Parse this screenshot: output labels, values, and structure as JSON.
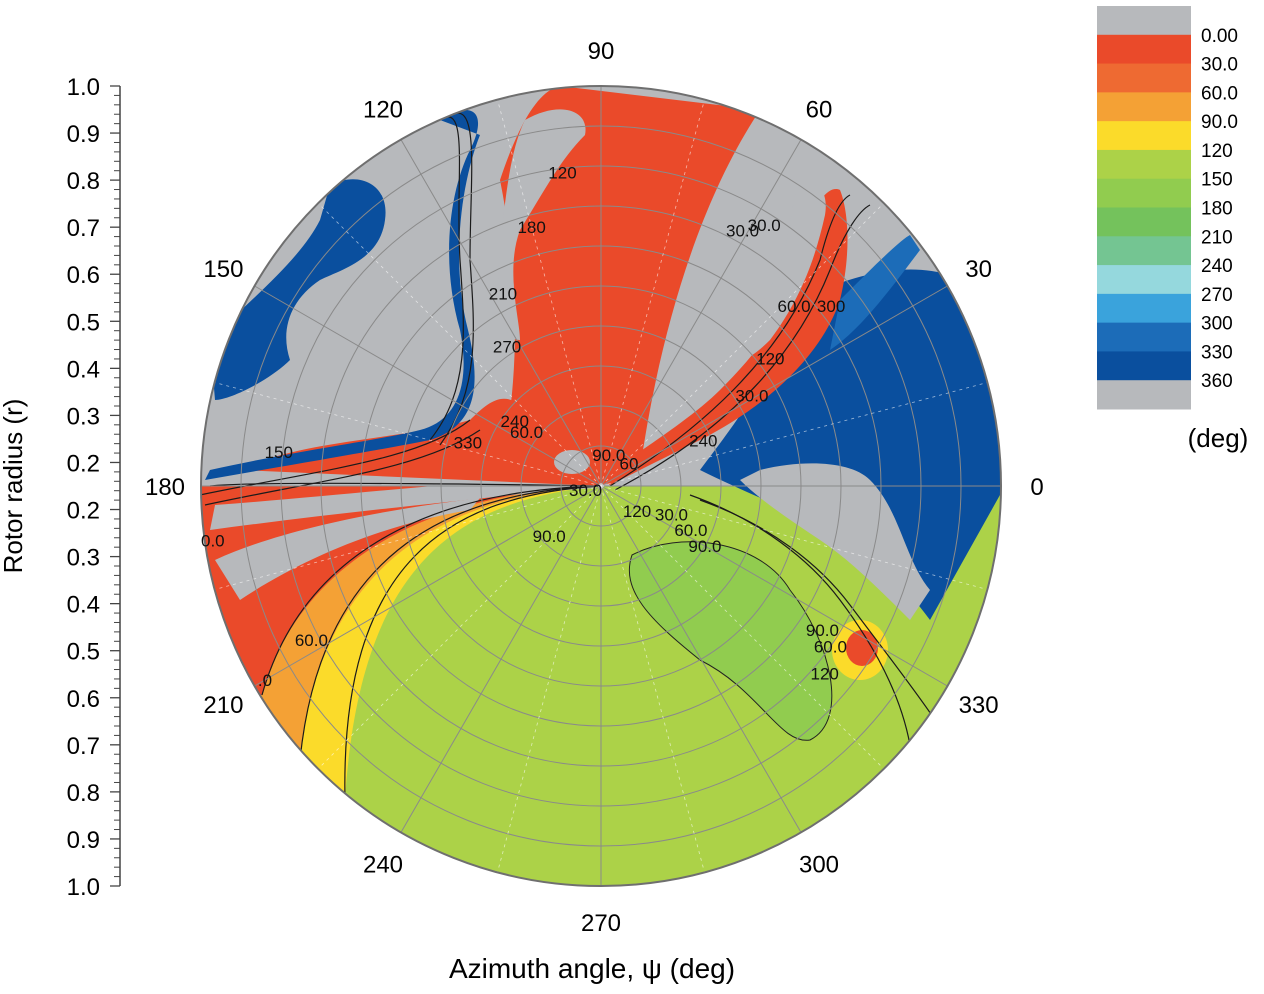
{
  "chart_data": {
    "type": "heatmap",
    "subtype": "polar-contour",
    "xlabel": "Azimuth angle, ψ (deg)",
    "ylabel": "Rotor radius (r)",
    "azimuth_ticks": [
      "0",
      "30",
      "60",
      "90",
      "120",
      "150",
      "180",
      "210",
      "240",
      "270",
      "300",
      "330"
    ],
    "radius_ticks": [
      "0.2",
      "0.3",
      "0.4",
      "0.5",
      "0.6",
      "0.7",
      "0.8",
      "0.9",
      "1.0"
    ],
    "radius_axis_labels": [
      "1.0",
      "0.9",
      "0.8",
      "0.7",
      "0.6",
      "0.5",
      "0.4",
      "0.3",
      "0.2",
      "0.2",
      "0.3",
      "0.4",
      "0.5",
      "0.6",
      "0.7",
      "0.8",
      "0.9",
      "1.0"
    ],
    "radius_range": [
      0,
      1
    ],
    "grid": true,
    "colorbar": {
      "unit": "(deg)",
      "placement": "top-right",
      "levels": [
        "0.00",
        "30.0",
        "60.0",
        "90.0",
        "120",
        "150",
        "180",
        "210",
        "240",
        "270",
        "300",
        "330",
        "360"
      ],
      "colors": [
        "#b7b9bc",
        "#ea4a2a",
        "#ee6a32",
        "#f4a135",
        "#fbdb2a",
        "#acd248",
        "#91cc4f",
        "#74c25c",
        "#74c592",
        "#95d8dd",
        "#3aa3dc",
        "#1c6cb8",
        "#0a4f9e",
        "#b7b9bc"
      ]
    },
    "contour_labels": [
      {
        "text": "120",
        "angle": 97,
        "r": 0.79
      },
      {
        "text": "180",
        "angle": 105,
        "r": 0.67
      },
      {
        "text": "210",
        "angle": 117,
        "r": 0.54
      },
      {
        "text": "270",
        "angle": 124,
        "r": 0.42
      },
      {
        "text": "240",
        "angle": 143,
        "r": 0.27
      },
      {
        "text": "60.0",
        "angle": 144,
        "r": 0.23
      },
      {
        "text": "330",
        "angle": 162,
        "r": 0.35
      },
      {
        "text": "150",
        "angle": 174,
        "r": 0.81
      },
      {
        "text": "0.0",
        "angle": 188,
        "r": 0.98
      },
      {
        "text": "90.0",
        "angle": 224,
        "r": 0.18
      },
      {
        "text": "60.0",
        "angle": 208,
        "r": 0.82
      },
      {
        "text": ".0",
        "angle": 210,
        "r": 0.97
      },
      {
        "text": "30.0",
        "angle": 61,
        "r": 0.73
      },
      {
        "text": "30.0",
        "angle": 58,
        "r": 0.77
      },
      {
        "text": "60.0",
        "angle": 43,
        "r": 0.66
      },
      {
        "text": "300",
        "angle": 38,
        "r": 0.73
      },
      {
        "text": "120",
        "angle": 37,
        "r": 0.53
      },
      {
        "text": "30.0",
        "angle": 31,
        "r": 0.44
      },
      {
        "text": "240",
        "angle": 24,
        "r": 0.28
      },
      {
        "text": "90.0",
        "angle": 76,
        "r": 0.08
      },
      {
        "text": "60",
        "angle": 39,
        "r": 0.09
      },
      {
        "text": "30.0",
        "angle": 195,
        "r": 0.04
      },
      {
        "text": "120",
        "angle": 325,
        "r": 0.11
      },
      {
        "text": "30.0",
        "angle": 338,
        "r": 0.19
      },
      {
        "text": "60.0",
        "angle": 334,
        "r": 0.25
      },
      {
        "text": "90.0",
        "angle": 330,
        "r": 0.3
      },
      {
        "text": "90.0",
        "angle": 327,
        "r": 0.66
      },
      {
        "text": "60.0",
        "angle": 325,
        "r": 0.7
      },
      {
        "text": "120",
        "angle": 320,
        "r": 0.73
      }
    ]
  }
}
